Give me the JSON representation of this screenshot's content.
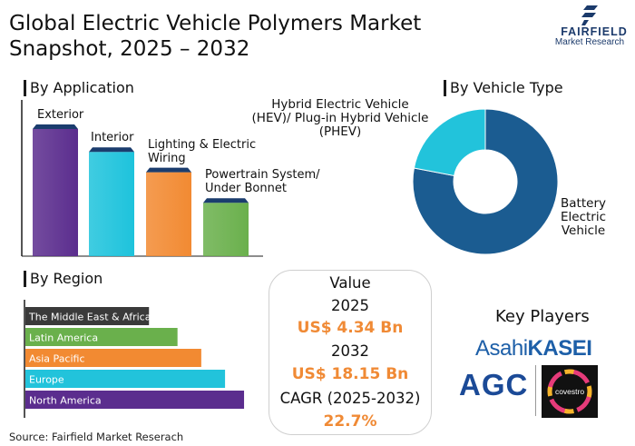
{
  "title_line1": "Global Electric Vehicle Polymers Market",
  "title_line2": "Snapshot, 2025 – 2032",
  "logo": {
    "name": "FAIRFIELD",
    "sub": "Market Research"
  },
  "sections": {
    "application": "By Application",
    "vehicle_type": "By Vehicle Type",
    "region": "By Region"
  },
  "chart_data": [
    {
      "type": "bar",
      "title": "By Application",
      "categories": [
        "Exterior",
        "Interior",
        "Lighting & Electric Wiring",
        "Powertrain System/ Under Bonnet"
      ],
      "category_lines": [
        [
          "Exterior"
        ],
        [
          "Interior"
        ],
        [
          "Lighting & Electric",
          "Wiring"
        ],
        [
          "Powertrain System/",
          "Under Bonnet"
        ]
      ],
      "values": [
        100,
        82,
        66,
        42
      ],
      "colors": [
        "#5b2d8e",
        "#1ec3dc",
        "#f28a32",
        "#6ab04c"
      ],
      "cap_colors": [
        "#1b3d6e",
        "#1b3d6e",
        "#1b3d6e",
        "#1b3d6e"
      ],
      "ylim": [
        0,
        100
      ],
      "grid": false
    },
    {
      "type": "pie",
      "title": "By Vehicle Type",
      "labels": [
        "Battery Electric Vehicle",
        "Hybrid Electric Vehicle (HEV)/ Plug-in Hybrid Vehicle (PHEV)"
      ],
      "label_lines": [
        [
          "Battery",
          "Electric",
          "Vehicle"
        ],
        [
          "Hybrid Electric Vehicle",
          "(HEV)/ Plug-in Hybrid Vehicle",
          "(PHEV)"
        ]
      ],
      "values": [
        78,
        22
      ],
      "colors": [
        "#1b5c91",
        "#22c3db"
      ],
      "donut": true
    },
    {
      "type": "bar",
      "orientation": "horizontal",
      "title": "By Region",
      "categories": [
        "The Middle East & Africa",
        "Latin America",
        "Asia Pacific",
        "Europe",
        "North America"
      ],
      "values": [
        52,
        64,
        74,
        84,
        92
      ],
      "colors": [
        "#3a3a3a",
        "#6ab04c",
        "#f28a32",
        "#22c3db",
        "#5b2d8e"
      ],
      "xlim": [
        0,
        100
      ],
      "grid": false
    }
  ],
  "value_box": {
    "label": "Value",
    "year1": "2025",
    "value1": "US$ 4.34 Bn",
    "year2": "2032",
    "value2": "US$ 18.15 Bn",
    "cagr_label": "CAGR (2025-2032)",
    "cagr": "22.7%"
  },
  "key_players": {
    "title": "Key Players",
    "asahi_a": "Asahi",
    "asahi_b": "KASEI",
    "agc": "AGC",
    "covestro": "covestro"
  },
  "source": "Source: Fairfield Market Reserach"
}
